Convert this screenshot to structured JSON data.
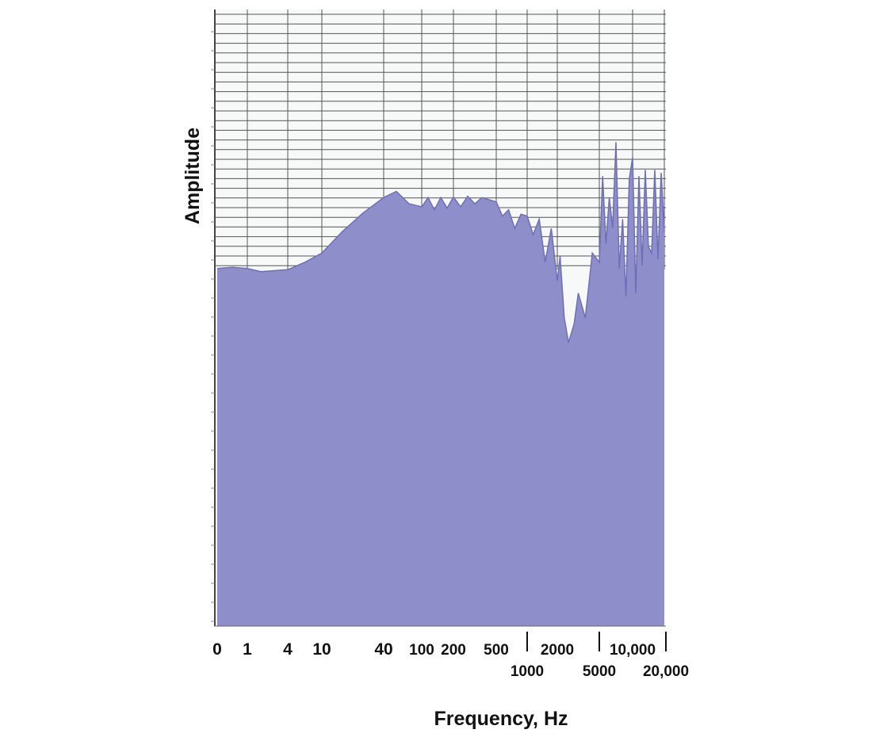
{
  "chart_data": {
    "type": "area",
    "xlabel": "Frequency, Hz",
    "ylabel": "Amplitude",
    "x_scale": "nonlinear (labeled tick positions)",
    "grid": true,
    "legend": "none",
    "colors": {
      "fill": "#8e8ecb",
      "edge": "#6f6fb6",
      "grid": "#555555",
      "background": "#f6f9f8"
    },
    "x_ticks_row1": [
      "0",
      "1",
      "4",
      "10",
      "40",
      "100",
      "200",
      "500",
      "2000",
      "10,000"
    ],
    "x_ticks_row2": [
      "1000",
      "5000",
      "20,000"
    ],
    "ylim": [
      0,
      100
    ],
    "series": [
      {
        "x": [
          0,
          0.5,
          1,
          2,
          4,
          7,
          10,
          20,
          30,
          40,
          60,
          80,
          100,
          120,
          140,
          160,
          180,
          200,
          250,
          300,
          350,
          400,
          500,
          600,
          700,
          800,
          900,
          1000,
          1200,
          1400,
          1600,
          1800,
          2000,
          2200,
          2500,
          2800,
          3000,
          3200,
          3500,
          4000,
          4500,
          5000,
          5500,
          6000,
          6500,
          7000,
          7500,
          8000,
          8500,
          9000,
          9500,
          10000,
          11000,
          12000,
          13000,
          14000,
          15000,
          16000,
          17000,
          18000,
          19000,
          20000
        ],
        "values": [
          58,
          58.2,
          58,
          57.5,
          57.8,
          59,
          60.5,
          64,
          67,
          69.5,
          70.5,
          68.5,
          68,
          69.5,
          67.5,
          69.5,
          67.8,
          69.6,
          68,
          69.7,
          68.5,
          69.5,
          68.8,
          66.5,
          67.5,
          64.5,
          66.8,
          66.5,
          63.5,
          66,
          59,
          64.5,
          56,
          60,
          50,
          46,
          47.5,
          49,
          54,
          50,
          60.5,
          59,
          73,
          62,
          69.5,
          64.5,
          78.5,
          58,
          66,
          53.5,
          72.5,
          76,
          54,
          73,
          58.5,
          74,
          61.5,
          60.5,
          74,
          59.5,
          73.5,
          64
        ]
      }
    ]
  }
}
